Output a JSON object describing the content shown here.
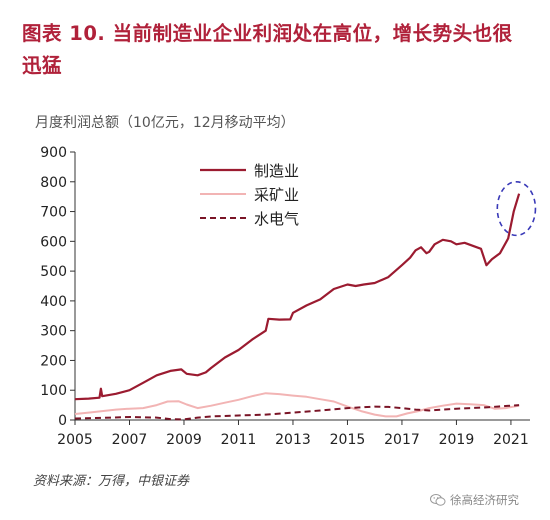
{
  "figure": {
    "label": "图表 10.",
    "title_text": "当前制造业企业利润处在高位，增长势头也很迅猛",
    "subtitle": "月度利润总额（10亿元，12月移动平均）",
    "source": "资料来源：万得，中银证券",
    "watermark": "徐高经济研究"
  },
  "chart_data": {
    "type": "line",
    "title": "",
    "xlabel": "",
    "ylabel": "月度利润总额（10亿元，12月移动平均）",
    "ylim": [
      0,
      900
    ],
    "xlim": [
      2005,
      2021.7
    ],
    "yticks": [
      0,
      100,
      200,
      300,
      400,
      500,
      600,
      700,
      800,
      900
    ],
    "xticks": [
      2005,
      2007,
      2009,
      2011,
      2013,
      2015,
      2017,
      2019,
      2021
    ],
    "grid": false,
    "legend_position": "top-center",
    "series": [
      {
        "name": "制造业",
        "color": "#9b1b30",
        "style": "solid",
        "x": [
          2005.0,
          2005.5,
          2005.9,
          2005.95,
          2006.0,
          2006.5,
          2007.0,
          2007.5,
          2008.0,
          2008.5,
          2008.9,
          2009.1,
          2009.5,
          2009.8,
          2010.0,
          2010.5,
          2011.0,
          2011.5,
          2012.0,
          2012.1,
          2012.5,
          2012.9,
          2013.0,
          2013.5,
          2014.0,
          2014.5,
          2015.0,
          2015.3,
          2015.6,
          2016.0,
          2016.5,
          2017.0,
          2017.3,
          2017.5,
          2017.7,
          2017.9,
          2018.0,
          2018.2,
          2018.5,
          2018.8,
          2019.0,
          2019.3,
          2019.6,
          2019.9,
          2020.1,
          2020.3,
          2020.6,
          2020.9,
          2021.1,
          2021.3
        ],
        "values": [
          70,
          72,
          75,
          105,
          80,
          88,
          100,
          125,
          150,
          165,
          170,
          155,
          150,
          160,
          175,
          210,
          235,
          270,
          300,
          340,
          337,
          338,
          360,
          385,
          405,
          440,
          455,
          450,
          455,
          460,
          480,
          520,
          545,
          570,
          580,
          560,
          565,
          590,
          605,
          600,
          590,
          595,
          585,
          575,
          520,
          540,
          560,
          610,
          700,
          760
        ]
      },
      {
        "name": "采矿业",
        "color": "#f2b4b4",
        "style": "solid",
        "x": [
          2005.0,
          2005.5,
          2006.0,
          2006.5,
          2007.0,
          2007.5,
          2008.0,
          2008.4,
          2008.8,
          2009.1,
          2009.5,
          2010.0,
          2010.5,
          2011.0,
          2011.5,
          2012.0,
          2012.5,
          2013.0,
          2013.5,
          2014.0,
          2014.5,
          2015.0,
          2015.5,
          2016.0,
          2016.4,
          2016.8,
          2017.2,
          2017.6,
          2018.0,
          2018.5,
          2019.0,
          2019.5,
          2020.0,
          2020.4,
          2020.8,
          2021.3
        ],
        "values": [
          20,
          25,
          30,
          35,
          38,
          40,
          50,
          62,
          63,
          52,
          40,
          48,
          58,
          68,
          80,
          90,
          87,
          82,
          78,
          70,
          62,
          45,
          30,
          18,
          12,
          12,
          22,
          30,
          40,
          48,
          55,
          53,
          50,
          38,
          40,
          48
        ]
      },
      {
        "name": "水电气",
        "color": "#7a1426",
        "style": "dashed",
        "x": [
          2005.0,
          2006.0,
          2007.0,
          2008.0,
          2008.5,
          2009.0,
          2009.5,
          2010.0,
          2011.0,
          2012.0,
          2013.0,
          2014.0,
          2015.0,
          2016.0,
          2016.5,
          2017.0,
          2017.5,
          2018.0,
          2018.5,
          2019.0,
          2019.5,
          2020.0,
          2020.5,
          2021.3
        ],
        "values": [
          5,
          7,
          10,
          8,
          3,
          2,
          8,
          12,
          15,
          18,
          25,
          32,
          40,
          45,
          44,
          40,
          35,
          32,
          35,
          38,
          40,
          42,
          45,
          50
        ]
      }
    ],
    "annotation": {
      "type": "ellipse",
      "color": "#3a3ab8",
      "style": "dashed",
      "x_center": 2021.2,
      "y_center": 710,
      "x_radius": 0.7,
      "y_radius": 90
    }
  }
}
